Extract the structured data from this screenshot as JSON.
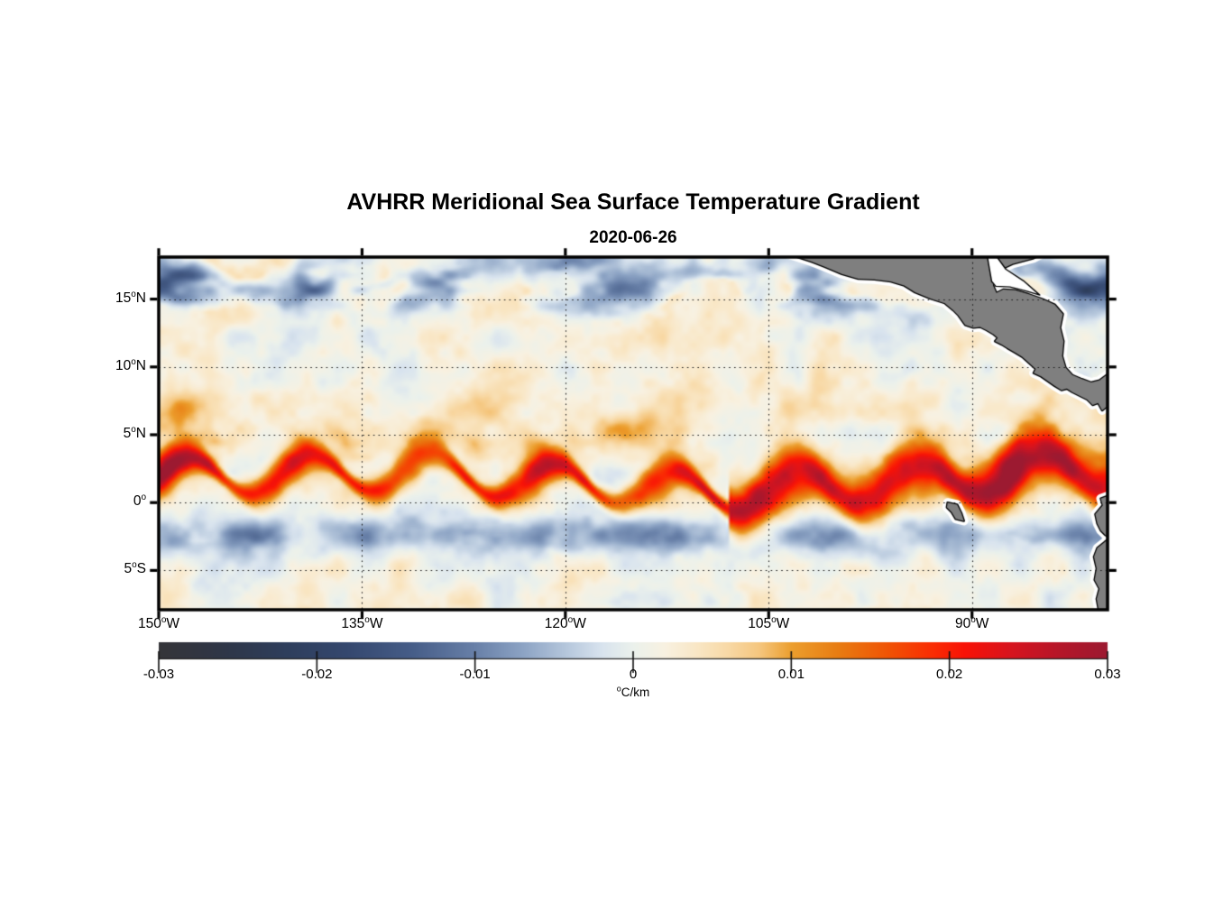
{
  "title": "AVHRR Meridional Sea Surface Temperature Gradient",
  "subtitle": "2020-06-26",
  "chart_data": {
    "type": "heatmap",
    "title": "AVHRR Meridional Sea Surface Temperature Gradient",
    "date": "2020-06-26",
    "x_axis": {
      "range_lon": [
        -150,
        -80
      ],
      "ticks": [
        {
          "lon": -150,
          "num": "150",
          "deg": "o",
          "hemi": "W"
        },
        {
          "lon": -135,
          "num": "135",
          "deg": "o",
          "hemi": "W"
        },
        {
          "lon": -120,
          "num": "120",
          "deg": "o",
          "hemi": "W"
        },
        {
          "lon": -105,
          "num": "105",
          "deg": "o",
          "hemi": "W"
        },
        {
          "lon": -90,
          "num": "90",
          "deg": "o",
          "hemi": "W"
        }
      ]
    },
    "y_axis": {
      "range_lat": [
        -7.9,
        18.1
      ],
      "ticks": [
        {
          "lat": 15,
          "num": "15",
          "deg": "o",
          "hemi": "N"
        },
        {
          "lat": 10,
          "num": "10",
          "deg": "o",
          "hemi": "N"
        },
        {
          "lat": 5,
          "num": "5",
          "deg": "o",
          "hemi": "N"
        },
        {
          "lat": 0,
          "num": "0",
          "deg": "o",
          "hemi": ""
        },
        {
          "lat": -5,
          "num": "5",
          "deg": "o",
          "hemi": "S"
        }
      ]
    },
    "grid": {
      "show": true,
      "style": "dotted",
      "color": "#1b1b1b"
    },
    "colorbar": {
      "min": -0.03,
      "max": 0.03,
      "ticks": [
        -0.03,
        -0.02,
        -0.01,
        0,
        0.01,
        0.02,
        0.03
      ],
      "tick_labels": [
        "-0.03",
        "-0.02",
        "-0.01",
        "0",
        "0.01",
        "0.02",
        "0.03"
      ],
      "unit_sup": "o",
      "unit_text": "C/km"
    },
    "colormap": [
      [
        -0.03,
        "#353539"
      ],
      [
        -0.026,
        "#2f3647"
      ],
      [
        -0.022,
        "#2e3e5c"
      ],
      [
        -0.018,
        "#35486f"
      ],
      [
        -0.014,
        "#465d88"
      ],
      [
        -0.01,
        "#6880a8"
      ],
      [
        -0.007,
        "#8ca3c4"
      ],
      [
        -0.004,
        "#b9cade"
      ],
      [
        -0.002,
        "#d8e3ee"
      ],
      [
        0.0,
        "#ebf1ec"
      ],
      [
        0.002,
        "#f8f1e1"
      ],
      [
        0.004,
        "#f9e7c6"
      ],
      [
        0.006,
        "#f8d9a6"
      ],
      [
        0.008,
        "#f5c67e"
      ],
      [
        0.01,
        "#ec9f2e"
      ],
      [
        0.013,
        "#e87c12"
      ],
      [
        0.016,
        "#f05505"
      ],
      [
        0.019,
        "#fa2c03"
      ],
      [
        0.021,
        "#f81207"
      ],
      [
        0.024,
        "#d6141f"
      ],
      [
        0.027,
        "#b51629"
      ],
      [
        0.03,
        "#9c1a31"
      ]
    ],
    "land_color": "#7f7f7f",
    "coast_color": "#000000",
    "coast_mask_color": "#ffffff",
    "land_polygons": {
      "central_america": [
        [
          -103.5,
          18.3
        ],
        [
          -101.8,
          17.75
        ],
        [
          -100.9,
          17.4
        ],
        [
          -99.6,
          16.85
        ],
        [
          -98.4,
          16.5
        ],
        [
          -97.2,
          16.45
        ],
        [
          -96.0,
          16.3
        ],
        [
          -95.0,
          16.0
        ],
        [
          -94.2,
          15.5
        ],
        [
          -93.1,
          15.05
        ],
        [
          -92.0,
          14.7
        ],
        [
          -91.4,
          14.2
        ],
        [
          -91.0,
          13.8
        ],
        [
          -90.5,
          13.1
        ],
        [
          -89.9,
          12.9
        ],
        [
          -89.4,
          12.95
        ],
        [
          -88.9,
          12.7
        ],
        [
          -88.4,
          12.4
        ],
        [
          -88.1,
          12.15
        ],
        [
          -88.3,
          11.9
        ],
        [
          -87.8,
          11.65
        ],
        [
          -87.4,
          11.4
        ],
        [
          -86.8,
          11.05
        ],
        [
          -86.3,
          10.75
        ],
        [
          -85.8,
          10.3
        ],
        [
          -85.3,
          9.85
        ],
        [
          -85.45,
          9.55
        ],
        [
          -84.9,
          9.3
        ],
        [
          -84.4,
          8.95
        ],
        [
          -83.9,
          8.6
        ],
        [
          -83.4,
          8.3
        ],
        [
          -83.0,
          8.4
        ],
        [
          -82.6,
          8.15
        ],
        [
          -82.0,
          7.85
        ],
        [
          -81.5,
          7.6
        ],
        [
          -81.1,
          7.2
        ],
        [
          -80.7,
          7.35
        ],
        [
          -80.4,
          6.8
        ],
        [
          -80.1,
          7.05
        ],
        [
          -79.8,
          7.2
        ],
        [
          -79.8,
          9.6
        ],
        [
          -80.6,
          9.0
        ],
        [
          -81.2,
          8.85
        ],
        [
          -81.9,
          9.1
        ],
        [
          -82.6,
          9.4
        ],
        [
          -83.1,
          9.95
        ],
        [
          -83.35,
          10.8
        ],
        [
          -83.25,
          11.9
        ],
        [
          -83.5,
          12.9
        ],
        [
          -83.3,
          13.9
        ],
        [
          -83.9,
          14.6
        ],
        [
          -84.8,
          15.0
        ],
        [
          -85.8,
          15.35
        ],
        [
          -86.8,
          15.65
        ],
        [
          -87.7,
          15.7
        ],
        [
          -88.2,
          15.45
        ],
        [
          -88.45,
          16.0
        ],
        [
          -88.3,
          17.0
        ],
        [
          -87.0,
          17.6
        ],
        [
          -85.5,
          18.0
        ],
        [
          -84.9,
          18.3
        ]
      ],
      "honduras_gulf_channel": [
        [
          -88.9,
          18.3
        ],
        [
          -88.55,
          16.3
        ],
        [
          -88.25,
          15.95
        ],
        [
          -87.2,
          15.9
        ],
        [
          -86.0,
          15.6
        ],
        [
          -85.0,
          15.3
        ],
        [
          -86.2,
          16.35
        ],
        [
          -87.5,
          17.2
        ],
        [
          -88.3,
          18.3
        ]
      ],
      "south_america": [
        [
          -79.8,
          0.55
        ],
        [
          -80.5,
          0.3
        ],
        [
          -80.35,
          -0.2
        ],
        [
          -80.9,
          -0.85
        ],
        [
          -80.75,
          -1.55
        ],
        [
          -80.5,
          -2.05
        ],
        [
          -80.15,
          -2.4
        ],
        [
          -79.85,
          -2.6
        ],
        [
          -80.25,
          -2.95
        ],
        [
          -80.75,
          -3.35
        ],
        [
          -81.0,
          -4.0
        ],
        [
          -80.8,
          -4.85
        ],
        [
          -80.95,
          -5.7
        ],
        [
          -80.6,
          -6.35
        ],
        [
          -80.8,
          -7.1
        ],
        [
          -80.6,
          -8.2
        ],
        [
          -79.8,
          -8.2
        ]
      ],
      "galapagos": [
        [
          -91.8,
          0.0
        ],
        [
          -91.1,
          -0.15
        ],
        [
          -90.8,
          -0.75
        ],
        [
          -90.6,
          -1.35
        ],
        [
          -91.2,
          -1.2
        ],
        [
          -91.5,
          -0.7
        ],
        [
          -91.85,
          -0.35
        ]
      ]
    },
    "field_model": {
      "seed": 7,
      "background_amp": 0.0055,
      "tiw_red_band": {
        "lat_mean": 1.7,
        "meander_amp_deg": 1.4,
        "wavelength_deg": 9.0,
        "width_deg": 1.0,
        "peak_value": 0.032,
        "east_broadening_lon": -108
      },
      "secondary_orange_band": {
        "lat": 6.3,
        "width_deg": 1.05,
        "amp": 0.01,
        "west_of_lon": -112
      },
      "south_blue_band": {
        "lat": -2.4,
        "width_deg": 1.5,
        "amp": -0.0125
      },
      "north_blue_patches": {
        "lat": 16.1,
        "width_deg": 2.1,
        "amp": -0.021
      },
      "top_edge_blue": {
        "lat": 17.9,
        "width_deg": 1.3,
        "amp": -0.008
      }
    },
    "features": [
      "Strong positive (red) meridional SST gradient band along the North Equatorial Front between 0 and 5 N with tropical-instability-wave cusps",
      "Band broadens and intensifies east of 108 W, reaching values near +0.03 C/km",
      "Negative (blue) band south of the equator near 2-3 S",
      "Dark negative patches between 13 N and 18 N, strongest northwest and north-central",
      "Gray land with black coastline and white coastal mask: Central America, Galapagos Islands, South American coast"
    ]
  }
}
